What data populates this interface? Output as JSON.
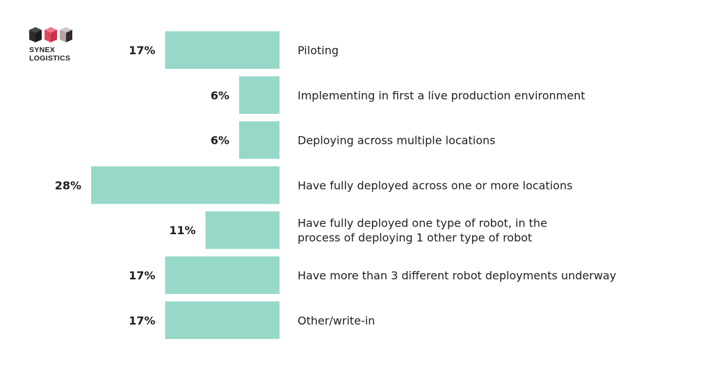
{
  "logo": {
    "line1": "SYNEX",
    "line2": "LOGISTICS"
  },
  "colors": {
    "bar": "#97d8c9",
    "text": "#1f1f1f",
    "logo_dark": "#2d2d2d",
    "logo_red": "#e0485e",
    "logo_taupe": "#b3a6a0"
  },
  "chart_data": {
    "type": "bar",
    "orientation": "horizontal",
    "categories": [
      [
        "Piloting"
      ],
      [
        "Implementing in first a live production environment"
      ],
      [
        "Deploying across multiple locations"
      ],
      [
        "Have fully deployed across one or more locations"
      ],
      [
        "Have fully deployed one type of robot, in the",
        "process of deploying 1 other type of robot"
      ],
      [
        "Have more than 3 different robot deployments underway"
      ],
      [
        "Other/write-in"
      ]
    ],
    "values": [
      17,
      6,
      6,
      28,
      11,
      17,
      17
    ],
    "value_labels": [
      "17%",
      "6%",
      "6%",
      "28%",
      "11%",
      "17%",
      "17%"
    ],
    "xlim": [
      0,
      28
    ],
    "grid": false,
    "legend": "none"
  }
}
